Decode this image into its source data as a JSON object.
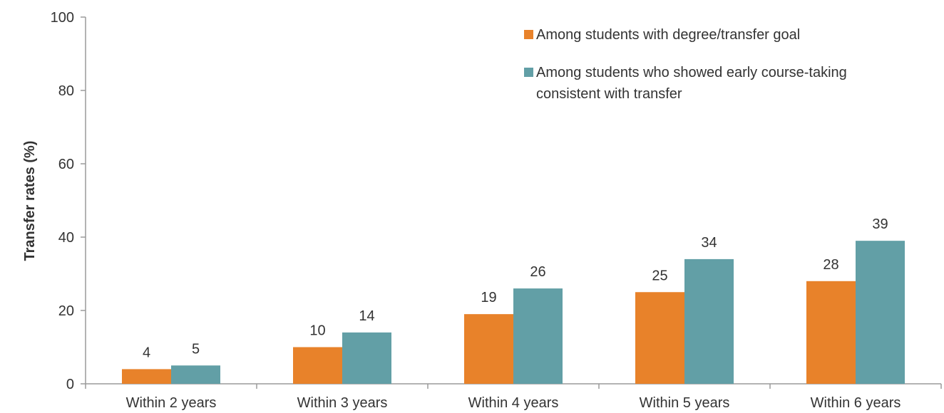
{
  "chart_data": {
    "type": "bar",
    "categories": [
      "Within 2 years",
      "Within 3 years",
      "Within 4 years",
      "Within 5 years",
      "Within 6 years"
    ],
    "series": [
      {
        "name": "Among students with degree/transfer goal",
        "color": "#E8822A",
        "values": [
          4,
          10,
          19,
          25,
          28
        ]
      },
      {
        "name_lines": [
          "Among students who showed early course-taking",
          "consistent with transfer"
        ],
        "color": "#629FA6",
        "values": [
          5,
          14,
          26,
          34,
          39
        ]
      }
    ],
    "ylabel": "Transfer rates (%)",
    "ylim": [
      0,
      100
    ],
    "yticks": [
      0,
      20,
      40,
      60,
      80,
      100
    ],
    "legend_position": "top-right",
    "grid": false
  }
}
